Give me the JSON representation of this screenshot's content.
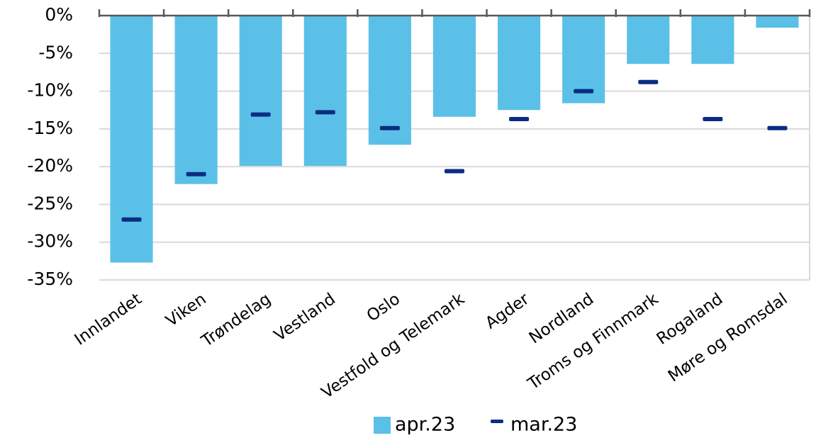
{
  "chart_data": {
    "type": "bar",
    "categories": [
      "Innlandet",
      "Viken",
      "Trøndelag",
      "Vestland",
      "Oslo",
      "Vestfold og Telemark",
      "Agder",
      "Nordland",
      "Troms og Finnmark",
      "Rogaland",
      "Møre og Romsdal"
    ],
    "series": [
      {
        "name": "apr.23",
        "color": "#5bc0e8",
        "style": "bar",
        "values": [
          -32.7,
          -22.3,
          -19.9,
          -19.9,
          -17.1,
          -13.4,
          -12.5,
          -11.6,
          -6.4,
          -6.4,
          -1.6
        ]
      },
      {
        "name": "mar.23",
        "color": "#0a2d82",
        "style": "dash",
        "values": [
          -27.0,
          -21.0,
          -13.1,
          -12.8,
          -14.9,
          -20.6,
          -13.7,
          -10.0,
          -8.8,
          -13.7,
          -14.9
        ]
      }
    ],
    "ylim": [
      -35,
      0
    ],
    "yticks": [
      {
        "value": 0,
        "label": "0%"
      },
      {
        "value": -5,
        "label": "-5%"
      },
      {
        "value": -10,
        "label": "-10%"
      },
      {
        "value": -15,
        "label": "-15%"
      },
      {
        "value": -20,
        "label": "-20%"
      },
      {
        "value": -25,
        "label": "-25%"
      },
      {
        "value": -30,
        "label": "-30%"
      },
      {
        "value": -35,
        "label": "-35%"
      }
    ],
    "grid": true,
    "legend": "bottom"
  }
}
